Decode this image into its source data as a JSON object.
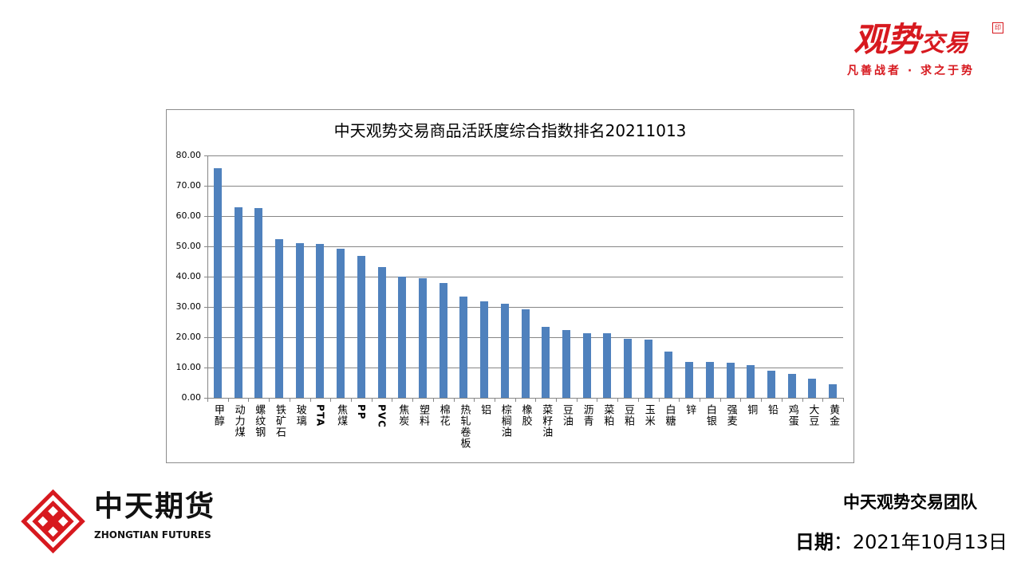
{
  "brand": {
    "name_big": "观势",
    "name_small": "交易",
    "slogan": "凡善战者 · 求之于势",
    "seal": "印"
  },
  "company": {
    "name_cn": "中天期货",
    "name_en": "ZHONGTIAN FUTURES"
  },
  "footer": {
    "team": "中天观势交易团队",
    "date_label": "日期",
    "date_sep": "：",
    "date_value": "2021年10月13日"
  },
  "colors": {
    "bar": "#4f81bd",
    "brand_red": "#d7191f"
  },
  "chart_data": {
    "type": "bar",
    "title": "中天观势交易商品活跃度综合指数排名20211013",
    "xlabel": "",
    "ylabel": "",
    "ylim": [
      0,
      80
    ],
    "yticks": [
      "0.00",
      "10.00",
      "20.00",
      "30.00",
      "40.00",
      "50.00",
      "60.00",
      "70.00",
      "80.00"
    ],
    "grid": true,
    "categories": [
      "甲醇",
      "动力煤",
      "螺纹钢",
      "铁矿石",
      "玻璃",
      "PTA",
      "焦煤",
      "PP",
      "PVC",
      "焦炭",
      "塑料",
      "棉花",
      "热轧卷板",
      "铝",
      "棕榈油",
      "橡胶",
      "菜籽油",
      "豆油",
      "沥青",
      "菜粕",
      "豆粕",
      "玉米",
      "白糖",
      "锌",
      "白银",
      "强麦",
      "铜",
      "铅",
      "鸡蛋",
      "大豆",
      "黄金"
    ],
    "values": [
      75.8,
      62.9,
      62.7,
      52.4,
      51.1,
      50.8,
      49.3,
      46.9,
      43.2,
      39.9,
      39.5,
      37.9,
      33.5,
      31.9,
      31.1,
      29.3,
      23.5,
      22.4,
      21.4,
      21.4,
      19.5,
      19.3,
      15.3,
      11.9,
      11.9,
      11.7,
      10.9,
      9.0,
      8.0,
      6.4,
      4.6
    ]
  }
}
